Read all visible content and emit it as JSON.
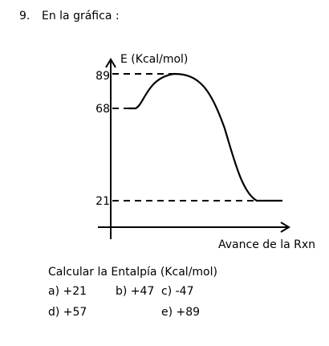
{
  "problem": {
    "number": "9.",
    "heading": "En la gráfica :"
  },
  "diagram": {
    "y_axis_label": "E (Kcal/mol)",
    "x_axis_label": "Avance de la Rxn",
    "ticks": {
      "peak": "89",
      "reactants": "68",
      "products": "21"
    }
  },
  "question": {
    "instruction": "Calcular la Entalpía (Kcal/mol)",
    "options": {
      "a": "a) +21",
      "b": "b) +47",
      "c": "c) -47",
      "d": "d) +57",
      "e": "e) +89"
    }
  }
}
